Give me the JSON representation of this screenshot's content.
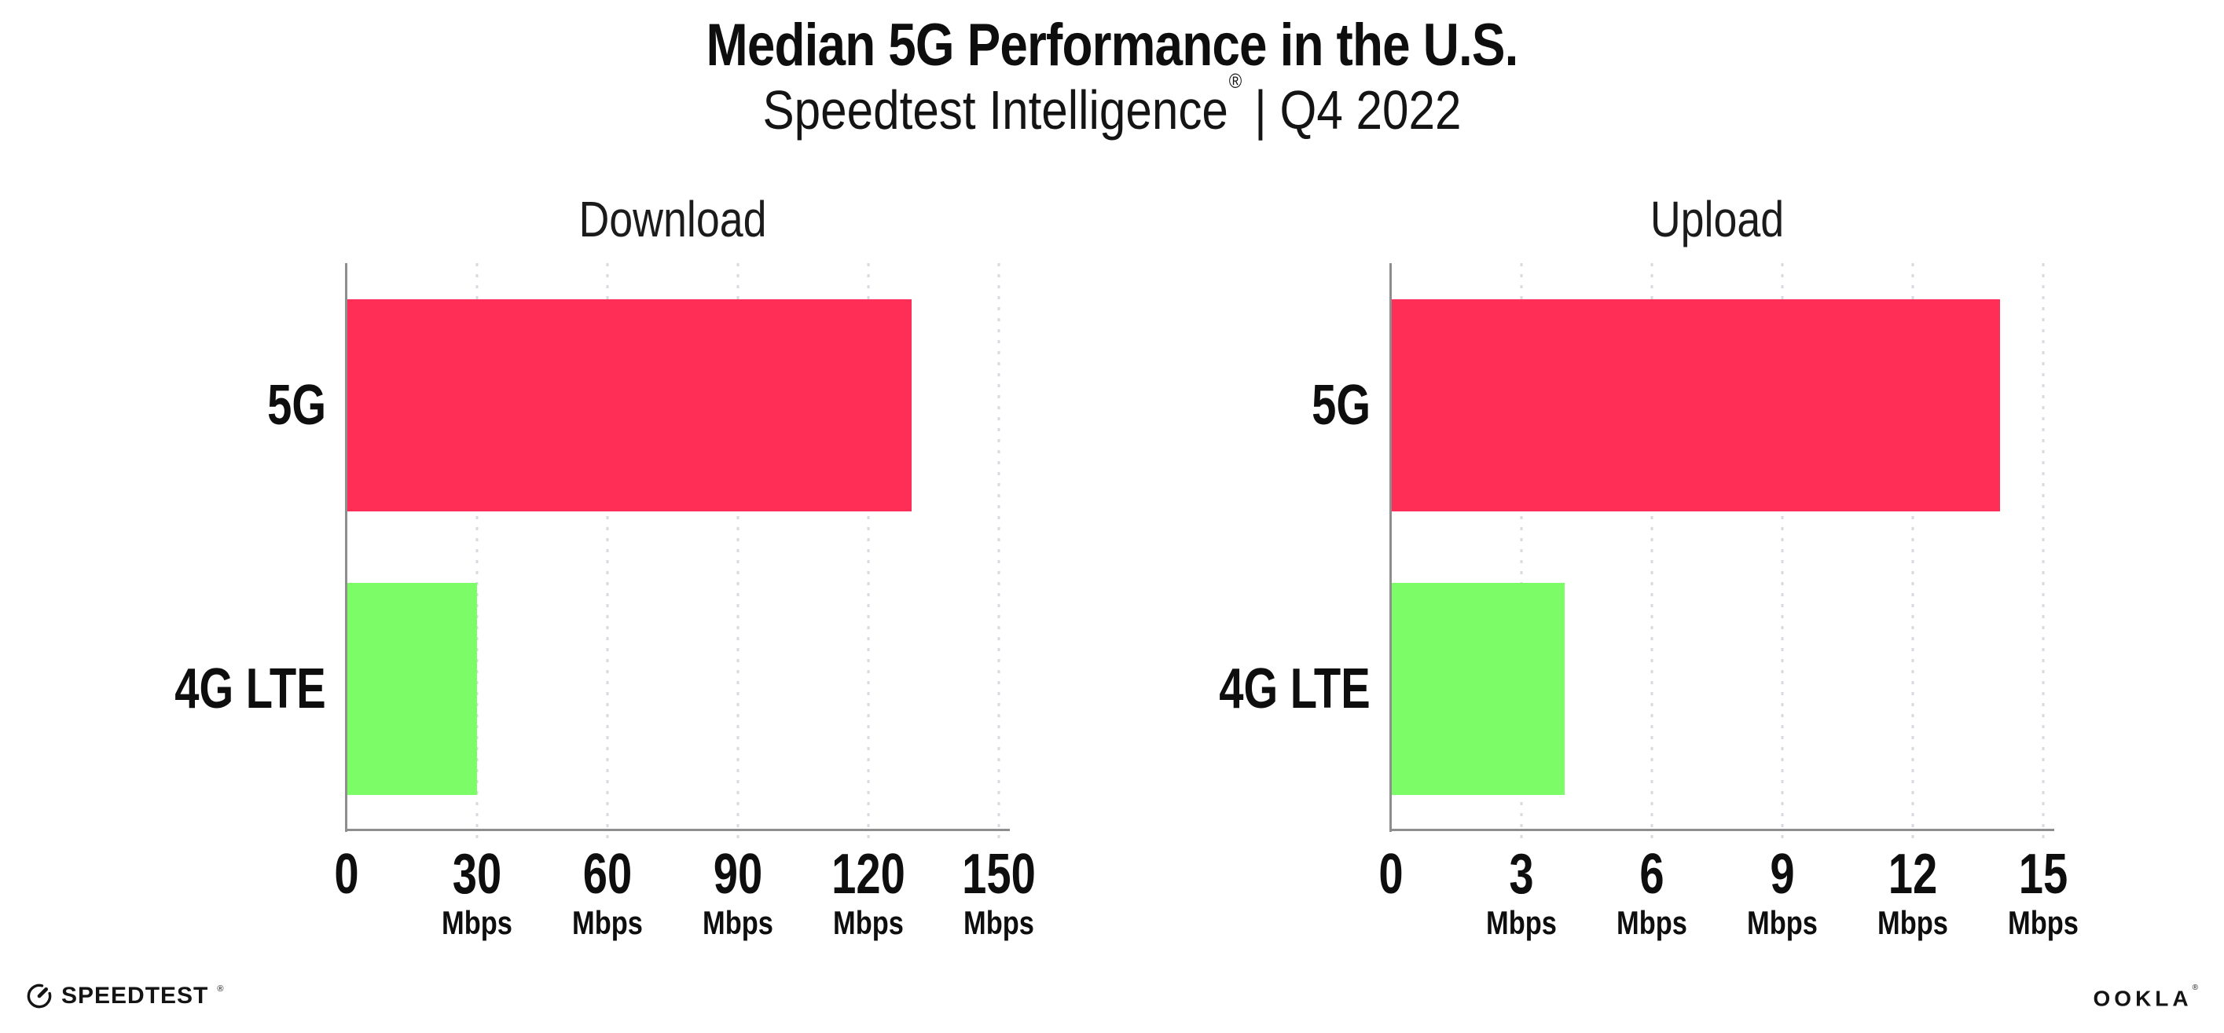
{
  "header": {
    "title": "Median 5G Performance in the U.S.",
    "subtitle_product": "Speedtest Intelligence",
    "subtitle_reg": "®",
    "subtitle_rest": " | Q4 2022"
  },
  "chart_data": [
    {
      "type": "bar",
      "orientation": "horizontal",
      "title": "Download",
      "categories": [
        "5G",
        "4G LTE"
      ],
      "values": [
        130,
        30
      ],
      "unit": "Mbps",
      "xlabel": "",
      "ylabel": "",
      "xlim": [
        0,
        150
      ],
      "ticks": [
        0,
        30,
        60,
        90,
        120,
        150
      ],
      "bar_colors": [
        "#FF2E56",
        "#7CFC67"
      ],
      "grid": "vertical-dotted",
      "legend": "none"
    },
    {
      "type": "bar",
      "orientation": "horizontal",
      "title": "Upload",
      "categories": [
        "5G",
        "4G LTE"
      ],
      "values": [
        14,
        4
      ],
      "unit": "Mbps",
      "xlabel": "",
      "ylabel": "",
      "xlim": [
        0,
        15
      ],
      "ticks": [
        0,
        3,
        6,
        9,
        12,
        15
      ],
      "bar_colors": [
        "#FF2E56",
        "#7CFC67"
      ],
      "grid": "vertical-dotted",
      "legend": "none"
    }
  ],
  "colors": {
    "bar_5g": "#FF2E56",
    "bar_4g_lte": "#7CFC67",
    "axis": "#8E8E8E",
    "gridline": "#D9D9E2",
    "text": "#0E0E0E",
    "background": "#FFFFFF"
  },
  "footer": {
    "speedtest_wordmark": "SPEEDTEST",
    "speedtest_reg": "®",
    "ookla_wordmark": "OOKLA",
    "ookla_reg": "®"
  },
  "icons": {
    "speedtest_gauge_icon": "circular speed gauge with needle pointing up-right"
  }
}
